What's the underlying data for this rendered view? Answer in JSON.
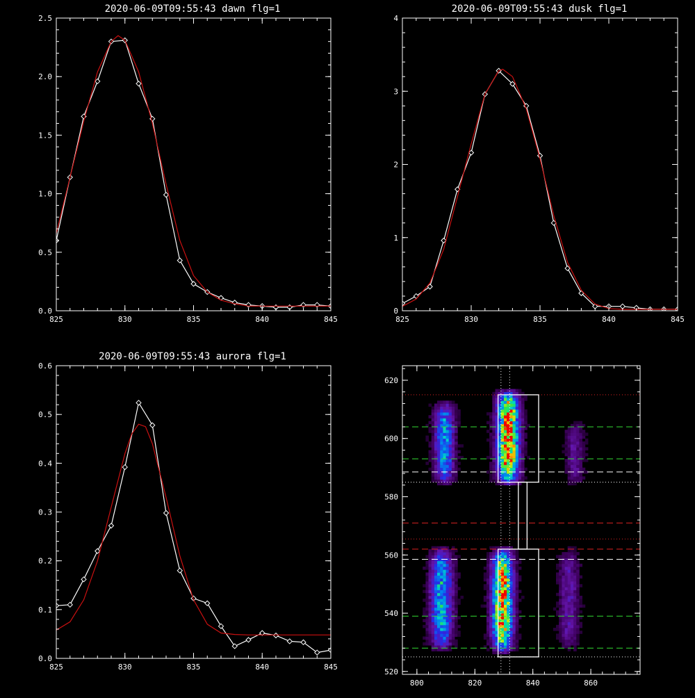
{
  "colors": {
    "background": "#000000",
    "axis": "#ffffff",
    "data": "#ffffff",
    "fit": "#cc1111",
    "green_line": "#33dd33",
    "red_line": "#dd2222",
    "white_line": "#ffffff"
  },
  "chart_data": [
    {
      "type": "line",
      "title": "2020-06-09T09:55:43 dawn flg=1",
      "xlim": [
        825,
        845
      ],
      "ylim": [
        0,
        2.5
      ],
      "xticks": [
        825,
        830,
        835,
        840,
        845
      ],
      "xtick_labels": [
        "825",
        "830",
        "835",
        "840",
        "845"
      ],
      "yticks": [
        0,
        0.5,
        1.0,
        1.5,
        2.0,
        2.5
      ],
      "ytick_labels": [
        "0.0",
        "0.5",
        "1.0",
        "1.5",
        "2.0",
        "2.5"
      ],
      "series": [
        {
          "style": "line-diamond",
          "color": "#ffffff",
          "x": [
            825,
            826,
            827,
            828,
            829,
            830,
            831,
            832,
            833,
            834,
            835,
            836,
            837,
            838,
            839,
            840,
            841,
            842,
            843,
            844,
            845
          ],
          "y": [
            0.6,
            1.14,
            1.66,
            1.96,
            2.3,
            2.31,
            1.94,
            1.64,
            0.99,
            0.43,
            0.23,
            0.16,
            0.11,
            0.07,
            0.05,
            0.04,
            0.03,
            0.03,
            0.05,
            0.05,
            0.04
          ]
        },
        {
          "style": "line",
          "color": "#cc1111",
          "x": [
            825,
            826,
            827,
            828,
            829,
            829.5,
            830,
            831,
            832,
            833,
            834,
            835,
            836,
            837,
            838,
            839,
            840,
            841,
            842,
            843,
            844,
            845
          ],
          "y": [
            0.66,
            1.14,
            1.62,
            2.04,
            2.3,
            2.35,
            2.31,
            2.04,
            1.6,
            1.08,
            0.6,
            0.3,
            0.16,
            0.09,
            0.06,
            0.04,
            0.04,
            0.04,
            0.04,
            0.04,
            0.04,
            0.04
          ]
        }
      ]
    },
    {
      "type": "line",
      "title": "2020-06-09T09:55:43 dusk flg=1",
      "xlim": [
        825,
        845
      ],
      "ylim": [
        0,
        4
      ],
      "xticks": [
        825,
        830,
        835,
        840,
        845
      ],
      "xtick_labels": [
        "825",
        "830",
        "835",
        "840",
        "845"
      ],
      "yticks": [
        0,
        1,
        2,
        3,
        4
      ],
      "ytick_labels": [
        "0",
        "1",
        "2",
        "3",
        "4"
      ],
      "series": [
        {
          "style": "line-diamond",
          "color": "#ffffff",
          "x": [
            825,
            826,
            827,
            828,
            829,
            830,
            831,
            832,
            833,
            834,
            835,
            836,
            837,
            838,
            839,
            840,
            841,
            842,
            843,
            844,
            845
          ],
          "y": [
            0.1,
            0.2,
            0.33,
            0.96,
            1.66,
            2.16,
            2.96,
            3.28,
            3.1,
            2.8,
            2.12,
            1.2,
            0.58,
            0.24,
            0.06,
            0.06,
            0.06,
            0.04,
            0.02,
            0.02,
            0.02
          ]
        },
        {
          "style": "line",
          "color": "#cc1111",
          "x": [
            825,
            826,
            827,
            828,
            829,
            830,
            831,
            832,
            832.3,
            833,
            834,
            835,
            836,
            837,
            838,
            839,
            840,
            841,
            842,
            843,
            844,
            845
          ],
          "y": [
            0.06,
            0.16,
            0.38,
            0.84,
            1.56,
            2.28,
            2.96,
            3.28,
            3.3,
            3.2,
            2.76,
            2.08,
            1.3,
            0.66,
            0.28,
            0.09,
            0.03,
            0.02,
            0.02,
            0.02,
            0.02,
            0.02
          ]
        }
      ]
    },
    {
      "type": "line",
      "title": "2020-06-09T09:55:43 aurora flg=1",
      "xlim": [
        825,
        845
      ],
      "ylim": [
        0,
        0.6
      ],
      "xticks": [
        825,
        830,
        835,
        840,
        845
      ],
      "xtick_labels": [
        "825",
        "830",
        "835",
        "840",
        "845"
      ],
      "yticks": [
        0,
        0.1,
        0.2,
        0.3,
        0.4,
        0.5,
        0.6
      ],
      "ytick_labels": [
        "0.0",
        "0.1",
        "0.2",
        "0.3",
        "0.4",
        "0.5",
        "0.6"
      ],
      "series": [
        {
          "style": "line-diamond",
          "color": "#ffffff",
          "x": [
            825,
            826,
            827,
            828,
            829,
            830,
            831,
            832,
            833,
            834,
            835,
            836,
            837,
            838,
            839,
            840,
            841,
            842,
            843,
            844,
            845
          ],
          "y": [
            0.108,
            0.11,
            0.162,
            0.22,
            0.272,
            0.392,
            0.524,
            0.478,
            0.298,
            0.18,
            0.123,
            0.113,
            0.066,
            0.025,
            0.038,
            0.052,
            0.047,
            0.035,
            0.033,
            0.012,
            0.017
          ]
        },
        {
          "style": "line",
          "color": "#cc1111",
          "x": [
            825,
            826,
            827,
            828,
            829,
            830,
            830.5,
            831,
            831.5,
            832,
            833,
            834,
            835,
            836,
            837,
            838,
            839,
            840,
            841,
            842,
            843,
            844,
            845
          ],
          "y": [
            0.058,
            0.075,
            0.12,
            0.2,
            0.31,
            0.42,
            0.46,
            0.48,
            0.475,
            0.44,
            0.33,
            0.21,
            0.12,
            0.07,
            0.052,
            0.049,
            0.048,
            0.048,
            0.048,
            0.048,
            0.048,
            0.048,
            0.048
          ]
        }
      ]
    },
    {
      "type": "heatmap",
      "title": "",
      "xlim": [
        795,
        877
      ],
      "ylim": [
        519,
        625
      ],
      "xticks": [
        800,
        820,
        840,
        860
      ],
      "xtick_labels": [
        "800",
        "820",
        "840",
        "860"
      ],
      "yticks": [
        520,
        540,
        560,
        580,
        600,
        620
      ],
      "ytick_labels": [
        "520",
        "540",
        "560",
        "580",
        "600",
        "620"
      ],
      "emission_bands": [
        {
          "x_center": 809,
          "x_width": 3.2,
          "y_range": [
            584,
            612
          ],
          "intensity": 0.5
        },
        {
          "x_center": 831,
          "x_width": 3.6,
          "y_range": [
            584,
            616
          ],
          "intensity": 0.95
        },
        {
          "x_center": 854,
          "x_width": 3.0,
          "y_range": [
            584,
            605
          ],
          "intensity": 0.18
        },
        {
          "x_center": 808,
          "x_width": 3.6,
          "y_range": [
            527,
            562
          ],
          "intensity": 0.55
        },
        {
          "x_center": 829,
          "x_width": 3.4,
          "y_range": [
            526,
            562
          ],
          "intensity": 0.9
        },
        {
          "x_center": 852,
          "x_width": 3.2,
          "y_range": [
            527,
            562
          ],
          "intensity": 0.22
        }
      ],
      "boxes": [
        {
          "x": [
            828,
            842
          ],
          "y": [
            585,
            615
          ]
        },
        {
          "x": [
            835,
            838
          ],
          "y": [
            562,
            585
          ]
        },
        {
          "x": [
            828,
            842
          ],
          "y": [
            525,
            562
          ]
        }
      ],
      "hlines": [
        {
          "y": 615,
          "style": "dotted",
          "color": "#dd2222"
        },
        {
          "y": 604,
          "style": "dashed",
          "color": "#33dd33"
        },
        {
          "y": 593,
          "style": "dashed",
          "color": "#33dd33"
        },
        {
          "y": 588.5,
          "style": "dashed",
          "color": "#ffffff"
        },
        {
          "y": 585,
          "style": "dotted",
          "color": "#ffffff"
        },
        {
          "y": 571,
          "style": "dashed",
          "color": "#dd2222"
        },
        {
          "y": 565.5,
          "style": "dotted",
          "color": "#dd2222"
        },
        {
          "y": 562,
          "style": "dashed",
          "color": "#dd2222"
        },
        {
          "y": 558.5,
          "style": "dashed",
          "color": "#ffffff"
        },
        {
          "y": 539,
          "style": "dashed",
          "color": "#33dd33"
        },
        {
          "y": 528,
          "style": "dashed",
          "color": "#33dd33"
        },
        {
          "y": 525,
          "style": "dotted",
          "color": "#ffffff"
        }
      ],
      "vlines": [
        {
          "x": 829,
          "style": "dotted",
          "color": "#ffffff"
        },
        {
          "x": 832,
          "style": "dotted",
          "color": "#ffffff"
        }
      ]
    }
  ]
}
